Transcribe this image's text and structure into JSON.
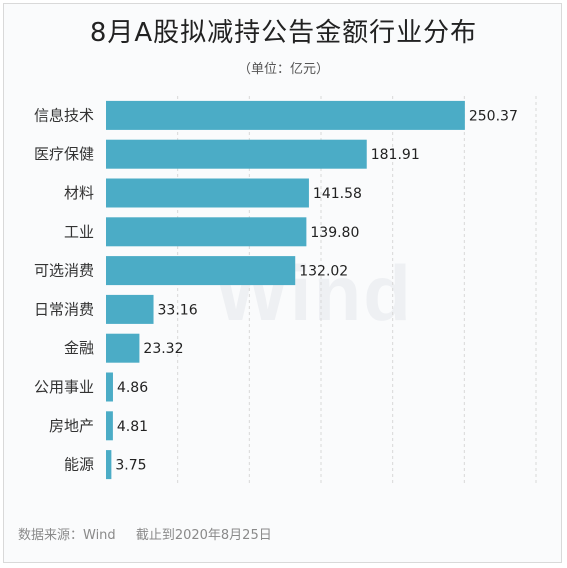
{
  "title": "8月A股拟减持公告金额行业分布",
  "subtitle": "（单位：亿元）",
  "watermark": "Wind",
  "footer": {
    "source": "数据来源：Wind",
    "date": "截止到2020年8月25日"
  },
  "colors": {
    "bar": "#4bacc6",
    "grid": "#d8d8d8"
  },
  "chart_data": {
    "type": "bar",
    "orientation": "horizontal",
    "title": "8月A股拟减持公告金额行业分布",
    "unit": "亿元",
    "categories": [
      "信息技术",
      "医疗保健",
      "材料",
      "工业",
      "可选消费",
      "日常消费",
      "金融",
      "公用事业",
      "房地产",
      "能源"
    ],
    "values": [
      250.37,
      181.91,
      141.58,
      139.8,
      132.02,
      33.16,
      23.32,
      4.86,
      4.81,
      3.75
    ],
    "value_labels": [
      "250.37",
      "181.91",
      "141.58",
      "139.80",
      "132.02",
      "33.16",
      "23.32",
      "4.86",
      "4.81",
      "3.75"
    ],
    "xlim": [
      0,
      300
    ],
    "grid": true,
    "legend": "none"
  }
}
